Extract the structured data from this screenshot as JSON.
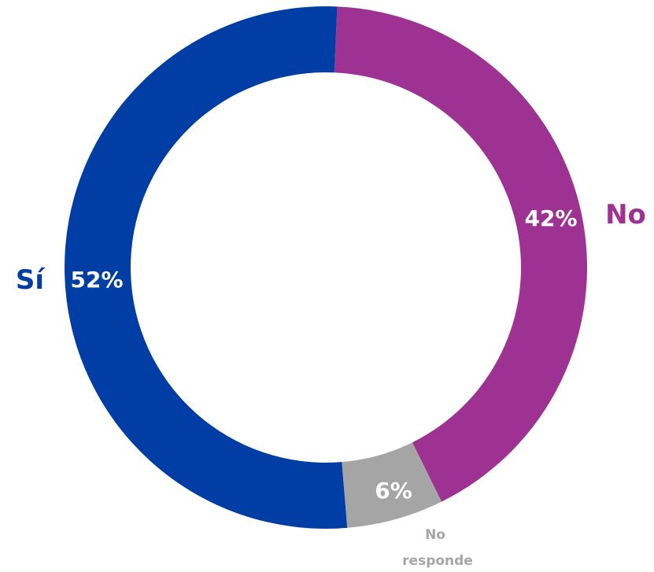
{
  "chart_data": {
    "type": "pie",
    "variant": "donut",
    "slices": [
      {
        "label": "No",
        "value": 42,
        "value_label": "42%",
        "color": "#9E3293"
      },
      {
        "label": "No responde",
        "value": 6,
        "value_label": "6%",
        "color": "#A5A5A5"
      },
      {
        "label": "Sí",
        "value": 52,
        "value_label": "52%",
        "color": "#003DA5"
      }
    ],
    "legend": "none",
    "category_labels": "outside-slice"
  }
}
